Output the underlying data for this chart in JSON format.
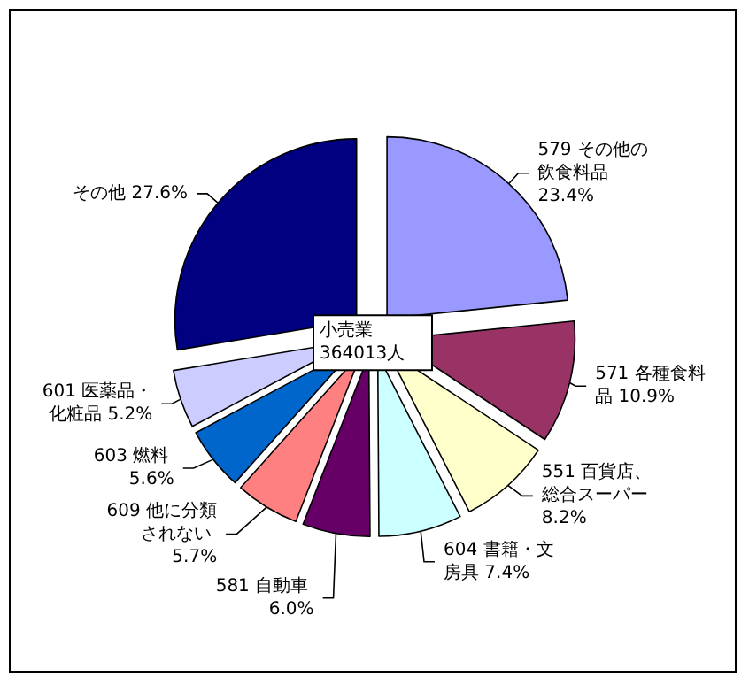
{
  "chart_data": {
    "type": "pie",
    "categories": [
      "579 その他の飲食料品",
      "571 各種食料品",
      "551 百貨店、総合スーパー",
      "604 書籍・文房具",
      "581 自動車",
      "609 他に分類されない",
      "603 燃料",
      "601 医薬品・化粧品",
      "その他"
    ],
    "values": [
      23.4,
      10.9,
      8.2,
      7.4,
      6.0,
      5.7,
      5.6,
      5.2,
      27.6
    ],
    "value_labels": [
      "23.4%",
      "10.9%",
      "8.2%",
      "7.4%",
      "6.0%",
      "5.7%",
      "5.6%",
      "5.2%",
      "27.6%"
    ],
    "colors": [
      "#9999ff",
      "#993366",
      "#ffffcc",
      "#ccffff",
      "#660066",
      "#ff8080",
      "#0066cc",
      "#ccccff",
      "#000080"
    ],
    "annotations": [
      "小売業 364013人"
    ],
    "legend": false
  }
}
